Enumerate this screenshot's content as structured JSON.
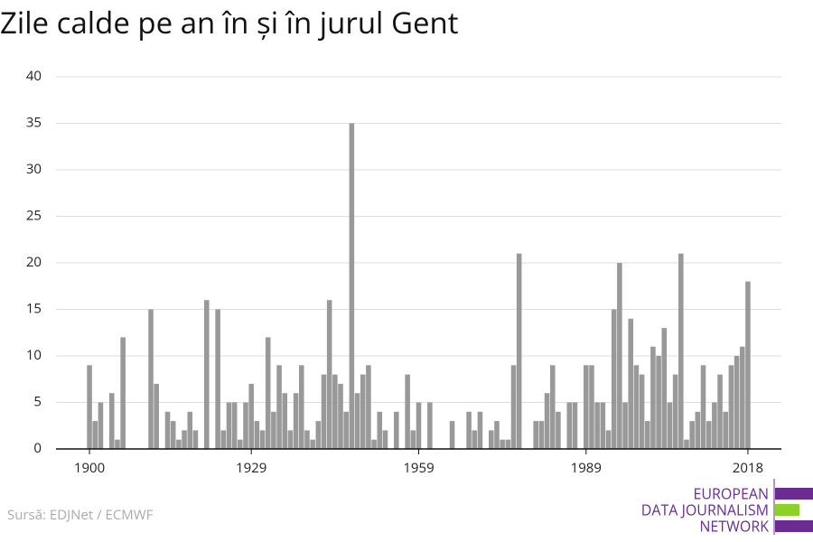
{
  "chart_data": {
    "type": "bar",
    "title": "Zile calde pe an în și în jurul Gent",
    "source": "Sursă: EDJNet / ECMWF",
    "logo": [
      "EUROPEAN",
      "DATA JOURNALISM",
      "NETWORK"
    ],
    "color": "#999999",
    "x": [
      1900,
      1901,
      1902,
      1903,
      1904,
      1905,
      1906,
      1907,
      1908,
      1909,
      1910,
      1911,
      1912,
      1913,
      1914,
      1915,
      1916,
      1917,
      1918,
      1919,
      1920,
      1921,
      1922,
      1923,
      1924,
      1925,
      1926,
      1927,
      1928,
      1929,
      1930,
      1931,
      1932,
      1933,
      1934,
      1935,
      1936,
      1937,
      1938,
      1939,
      1940,
      1941,
      1942,
      1943,
      1944,
      1945,
      1946,
      1947,
      1948,
      1949,
      1950,
      1951,
      1952,
      1953,
      1954,
      1955,
      1956,
      1957,
      1958,
      1959,
      1960,
      1961,
      1962,
      1963,
      1964,
      1965,
      1966,
      1967,
      1968,
      1969,
      1970,
      1971,
      1972,
      1973,
      1974,
      1975,
      1976,
      1977,
      1978,
      1979,
      1980,
      1981,
      1982,
      1983,
      1984,
      1985,
      1986,
      1987,
      1988,
      1989,
      1990,
      1991,
      1992,
      1993,
      1994,
      1995,
      1996,
      1997,
      1998,
      1999,
      2000,
      2001,
      2002,
      2003,
      2004,
      2005,
      2006,
      2007,
      2008,
      2009,
      2010,
      2011,
      2012,
      2013,
      2014,
      2015,
      2016,
      2017,
      2018
    ],
    "values": [
      9,
      3,
      5,
      0,
      6,
      1,
      12,
      0,
      0,
      0,
      0,
      15,
      7,
      0,
      4,
      3,
      1,
      2,
      4,
      2,
      0,
      16,
      0,
      15,
      2,
      5,
      5,
      1,
      5,
      7,
      3,
      2,
      12,
      4,
      9,
      6,
      2,
      6,
      9,
      2,
      1,
      3,
      8,
      16,
      8,
      7,
      4,
      35,
      6,
      8,
      9,
      1,
      4,
      2,
      0,
      4,
      0,
      8,
      2,
      5,
      0,
      5,
      0,
      0,
      0,
      3,
      0,
      0,
      4,
      2,
      4,
      0,
      2,
      3,
      1,
      1,
      9,
      21,
      0,
      0,
      3,
      3,
      6,
      9,
      4,
      0,
      5,
      5,
      0,
      9,
      9,
      5,
      5,
      2,
      15,
      20,
      5,
      14,
      9,
      8,
      3,
      11,
      10,
      13,
      5,
      8,
      21,
      1,
      3,
      4,
      9,
      3,
      5,
      8,
      4,
      9,
      10,
      11,
      18
    ],
    "xlim": [
      1894,
      2024
    ],
    "xticks": [
      1900,
      1929,
      1959,
      1989,
      2018
    ],
    "ylim": [
      0,
      40
    ],
    "yticks": [
      0,
      5,
      10,
      15,
      20,
      25,
      30,
      35,
      40
    ],
    "grid": true
  }
}
